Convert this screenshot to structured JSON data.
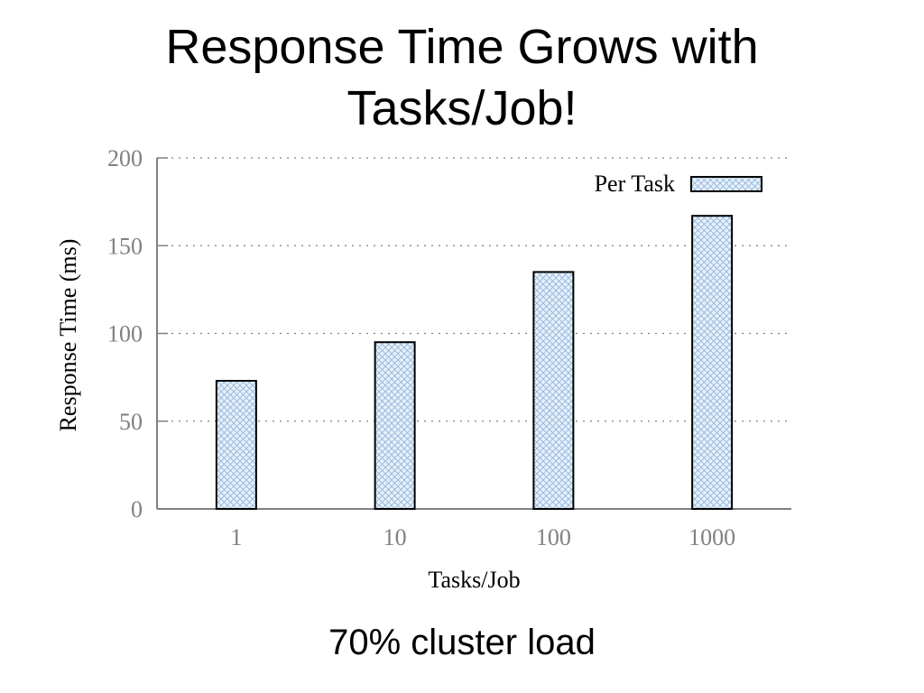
{
  "slide": {
    "title_line1": "Response Time Grows with",
    "title_line2": "Tasks/Job!",
    "caption": "70% cluster load"
  },
  "chart_data": {
    "type": "bar",
    "categories": [
      "1",
      "10",
      "100",
      "1000"
    ],
    "series": [
      {
        "name": "Per Task",
        "values": [
          73,
          95,
          135,
          167
        ]
      }
    ],
    "title": "",
    "xlabel": "Tasks/Job",
    "ylabel": "Response Time (ms)",
    "ylim": [
      0,
      200
    ],
    "yticks": [
      "0",
      "50",
      "100",
      "150",
      "200"
    ],
    "grid": true,
    "legend": "top-right",
    "colors": {
      "bar_fill": "#e6f0fa",
      "hatch": "#8fb3d9",
      "bar_stroke": "#000000",
      "axis": "#808080",
      "grid": "#808080",
      "tick_text": "#808080"
    }
  }
}
